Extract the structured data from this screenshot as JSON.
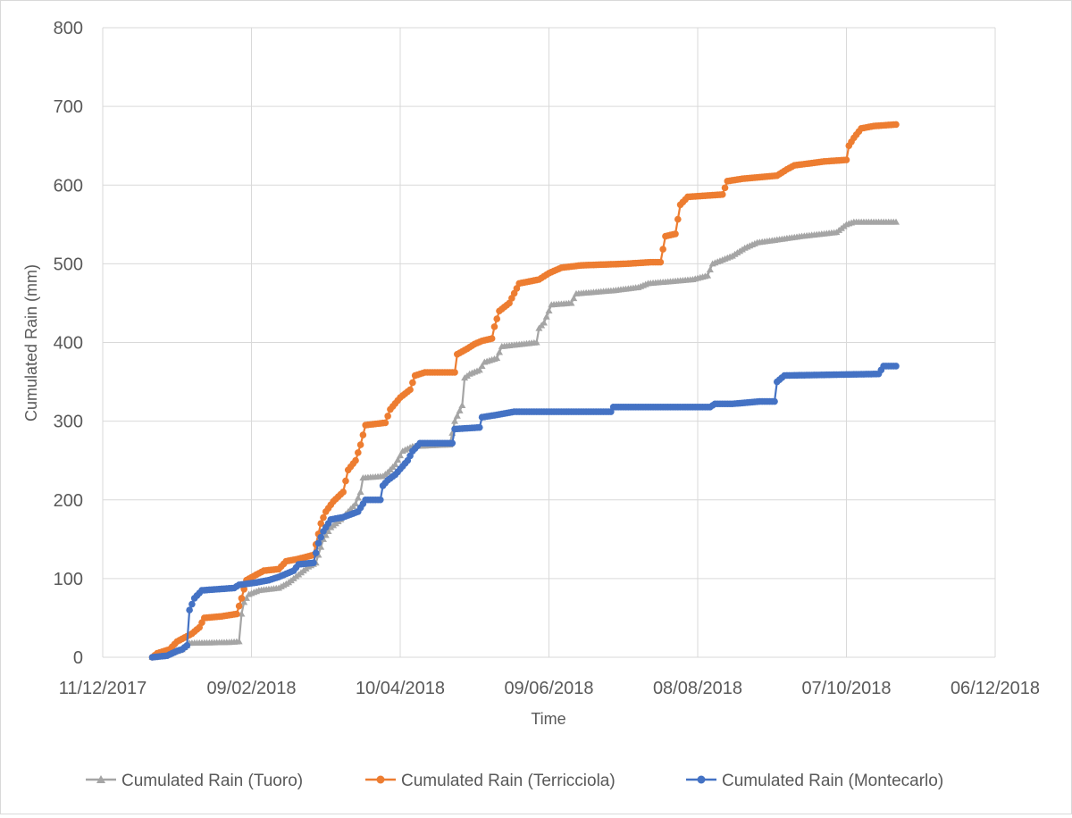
{
  "chart_data": {
    "type": "line",
    "title": "",
    "xlabel": "Time",
    "ylabel": "Cumulated Rain (mm)",
    "x_type": "date",
    "xlim": [
      "2017-12-11",
      "2018-12-06"
    ],
    "ylim": [
      0,
      800
    ],
    "x_ticks": [
      "2017-12-11",
      "2018-02-09",
      "2018-04-10",
      "2018-06-09",
      "2018-08-08",
      "2018-10-07",
      "2018-12-06"
    ],
    "x_tick_labels": [
      "11/12/2017",
      "09/02/2018",
      "10/04/2018",
      "09/06/2018",
      "08/08/2018",
      "07/10/2018",
      "06/12/2018"
    ],
    "y_ticks": [
      0,
      100,
      200,
      300,
      400,
      500,
      600,
      700,
      800
    ],
    "y_tick_labels": [
      "0",
      "100",
      "200",
      "300",
      "400",
      "500",
      "600",
      "700",
      "800"
    ],
    "grid": true,
    "legend_position": "bottom",
    "series": [
      {
        "name": "Cumulated Rain (Tuoro)",
        "color": "#a5a5a5",
        "marker": "triangle",
        "points": [
          [
            "2017-12-31",
            0
          ],
          [
            "2018-01-06",
            3
          ],
          [
            "2018-01-12",
            10
          ],
          [
            "2018-01-14",
            15
          ],
          [
            "2018-01-15",
            18
          ],
          [
            "2018-01-31",
            19
          ],
          [
            "2018-02-04",
            20
          ],
          [
            "2018-02-05",
            55
          ],
          [
            "2018-02-06",
            70
          ],
          [
            "2018-02-08",
            80
          ],
          [
            "2018-02-12",
            85
          ],
          [
            "2018-02-20",
            88
          ],
          [
            "2018-02-24",
            95
          ],
          [
            "2018-02-28",
            105
          ],
          [
            "2018-03-04",
            115
          ],
          [
            "2018-03-07",
            120
          ],
          [
            "2018-03-08",
            130
          ],
          [
            "2018-03-10",
            150
          ],
          [
            "2018-03-13",
            165
          ],
          [
            "2018-03-17",
            175
          ],
          [
            "2018-03-20",
            185
          ],
          [
            "2018-03-23",
            195
          ],
          [
            "2018-03-25",
            210
          ],
          [
            "2018-03-26",
            228
          ],
          [
            "2018-04-03",
            230
          ],
          [
            "2018-04-05",
            235
          ],
          [
            "2018-04-08",
            245
          ],
          [
            "2018-04-11",
            262
          ],
          [
            "2018-04-15",
            268
          ],
          [
            "2018-04-30",
            270
          ],
          [
            "2018-05-02",
            300
          ],
          [
            "2018-05-05",
            320
          ],
          [
            "2018-05-06",
            355
          ],
          [
            "2018-05-08",
            360
          ],
          [
            "2018-05-12",
            365
          ],
          [
            "2018-05-14",
            375
          ],
          [
            "2018-05-19",
            380
          ],
          [
            "2018-05-21",
            395
          ],
          [
            "2018-06-04",
            400
          ],
          [
            "2018-06-05",
            418
          ],
          [
            "2018-06-07",
            425
          ],
          [
            "2018-06-10",
            448
          ],
          [
            "2018-06-18",
            450
          ],
          [
            "2018-06-20",
            462
          ],
          [
            "2018-07-05",
            466
          ],
          [
            "2018-07-15",
            470
          ],
          [
            "2018-07-19",
            475
          ],
          [
            "2018-08-06",
            480
          ],
          [
            "2018-08-12",
            485
          ],
          [
            "2018-08-14",
            500
          ],
          [
            "2018-08-18",
            505
          ],
          [
            "2018-08-22",
            510
          ],
          [
            "2018-08-27",
            520
          ],
          [
            "2018-09-01",
            527
          ],
          [
            "2018-09-08",
            530
          ],
          [
            "2018-09-19",
            535
          ],
          [
            "2018-10-03",
            540
          ],
          [
            "2018-10-07",
            550
          ],
          [
            "2018-10-10",
            553
          ],
          [
            "2018-10-27",
            553
          ]
        ]
      },
      {
        "name": "Cumulated Rain (Terricciola)",
        "color": "#ed7d31",
        "marker": "circle",
        "points": [
          [
            "2017-12-31",
            0
          ],
          [
            "2018-01-02",
            5
          ],
          [
            "2018-01-07",
            10
          ],
          [
            "2018-01-10",
            20
          ],
          [
            "2018-01-16",
            30
          ],
          [
            "2018-01-19",
            38
          ],
          [
            "2018-01-21",
            50
          ],
          [
            "2018-01-28",
            52
          ],
          [
            "2018-02-03",
            55
          ],
          [
            "2018-02-05",
            75
          ],
          [
            "2018-02-07",
            98
          ],
          [
            "2018-02-11",
            105
          ],
          [
            "2018-02-14",
            110
          ],
          [
            "2018-02-20",
            112
          ],
          [
            "2018-02-23",
            122
          ],
          [
            "2018-02-28",
            125
          ],
          [
            "2018-03-06",
            130
          ],
          [
            "2018-03-09",
            170
          ],
          [
            "2018-03-11",
            185
          ],
          [
            "2018-03-14",
            198
          ],
          [
            "2018-03-18",
            210
          ],
          [
            "2018-03-20",
            238
          ],
          [
            "2018-03-23",
            250
          ],
          [
            "2018-03-25",
            270
          ],
          [
            "2018-03-27",
            295
          ],
          [
            "2018-04-04",
            298
          ],
          [
            "2018-04-06",
            315
          ],
          [
            "2018-04-10",
            330
          ],
          [
            "2018-04-14",
            340
          ],
          [
            "2018-04-16",
            358
          ],
          [
            "2018-04-20",
            362
          ],
          [
            "2018-05-02",
            362
          ],
          [
            "2018-05-03",
            385
          ],
          [
            "2018-05-07",
            392
          ],
          [
            "2018-05-10",
            398
          ],
          [
            "2018-05-13",
            402
          ],
          [
            "2018-05-17",
            405
          ],
          [
            "2018-05-18",
            420
          ],
          [
            "2018-05-20",
            440
          ],
          [
            "2018-05-24",
            450
          ],
          [
            "2018-05-28",
            475
          ],
          [
            "2018-06-05",
            480
          ],
          [
            "2018-06-09",
            488
          ],
          [
            "2018-06-14",
            495
          ],
          [
            "2018-06-22",
            498
          ],
          [
            "2018-07-10",
            500
          ],
          [
            "2018-07-20",
            502
          ],
          [
            "2018-07-24",
            502
          ],
          [
            "2018-07-26",
            535
          ],
          [
            "2018-07-30",
            538
          ],
          [
            "2018-08-01",
            575
          ],
          [
            "2018-08-04",
            585
          ],
          [
            "2018-08-18",
            588
          ],
          [
            "2018-08-20",
            605
          ],
          [
            "2018-08-26",
            608
          ],
          [
            "2018-09-09",
            612
          ],
          [
            "2018-09-13",
            620
          ],
          [
            "2018-09-16",
            625
          ],
          [
            "2018-09-28",
            630
          ],
          [
            "2018-10-07",
            632
          ],
          [
            "2018-10-08",
            650
          ],
          [
            "2018-10-10",
            660
          ],
          [
            "2018-10-13",
            672
          ],
          [
            "2018-10-18",
            675
          ],
          [
            "2018-10-27",
            677
          ]
        ]
      },
      {
        "name": "Cumulated Rain (Montecarlo)",
        "color": "#4472c4",
        "marker": "circle",
        "points": [
          [
            "2017-12-31",
            0
          ],
          [
            "2018-01-06",
            2
          ],
          [
            "2018-01-10",
            8
          ],
          [
            "2018-01-12",
            10
          ],
          [
            "2018-01-14",
            15
          ],
          [
            "2018-01-15",
            60
          ],
          [
            "2018-01-17",
            75
          ],
          [
            "2018-01-20",
            85
          ],
          [
            "2018-02-02",
            88
          ],
          [
            "2018-02-04",
            92
          ],
          [
            "2018-02-11",
            95
          ],
          [
            "2018-02-16",
            98
          ],
          [
            "2018-02-20",
            102
          ],
          [
            "2018-02-26",
            110
          ],
          [
            "2018-02-28",
            118
          ],
          [
            "2018-03-06",
            120
          ],
          [
            "2018-03-08",
            145
          ],
          [
            "2018-03-10",
            160
          ],
          [
            "2018-03-13",
            175
          ],
          [
            "2018-03-18",
            178
          ],
          [
            "2018-03-24",
            185
          ],
          [
            "2018-03-27",
            200
          ],
          [
            "2018-04-02",
            200
          ],
          [
            "2018-04-03",
            218
          ],
          [
            "2018-04-05",
            225
          ],
          [
            "2018-04-08",
            232
          ],
          [
            "2018-04-13",
            250
          ],
          [
            "2018-04-15",
            262
          ],
          [
            "2018-04-18",
            272
          ],
          [
            "2018-04-25",
            272
          ],
          [
            "2018-05-01",
            272
          ],
          [
            "2018-05-02",
            290
          ],
          [
            "2018-05-12",
            292
          ],
          [
            "2018-05-13",
            305
          ],
          [
            "2018-05-19",
            308
          ],
          [
            "2018-05-26",
            312
          ],
          [
            "2018-06-15",
            312
          ],
          [
            "2018-07-04",
            312
          ],
          [
            "2018-07-05",
            318
          ],
          [
            "2018-07-15",
            318
          ],
          [
            "2018-08-13",
            318
          ],
          [
            "2018-08-15",
            322
          ],
          [
            "2018-08-22",
            322
          ],
          [
            "2018-09-02",
            325
          ],
          [
            "2018-09-08",
            325
          ],
          [
            "2018-09-09",
            350
          ],
          [
            "2018-09-12",
            358
          ],
          [
            "2018-10-20",
            360
          ],
          [
            "2018-10-22",
            370
          ],
          [
            "2018-10-27",
            370
          ]
        ]
      }
    ]
  }
}
